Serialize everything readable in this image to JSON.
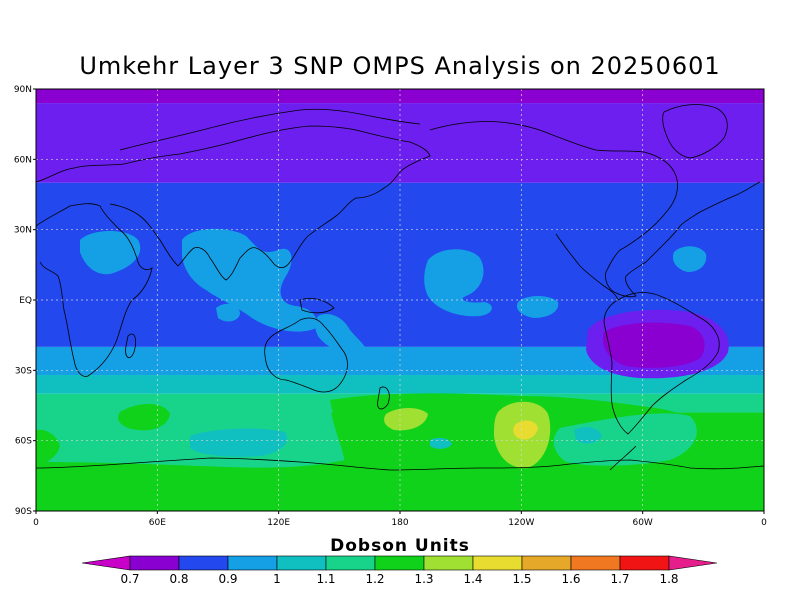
{
  "title": "Umkehr Layer 3 SNP OMPS Analysis on 20250601",
  "map": {
    "lat_labels": [
      "90N",
      "60N",
      "30N",
      "EQ",
      "30S",
      "60S",
      "90S"
    ],
    "lon_labels": [
      "0",
      "60E",
      "120E",
      "180",
      "120W",
      "60W",
      "0"
    ],
    "background_level_by_band": [
      {
        "lat_from": 90,
        "lat_to": 84,
        "color": "#8a00d0"
      },
      {
        "lat_from": 84,
        "lat_to": 50,
        "color": "#6c1fee"
      },
      {
        "lat_from": 50,
        "lat_to": -20,
        "color": "#2248ee"
      },
      {
        "lat_from": -20,
        "lat_to": -32,
        "color": "#15a0e6"
      },
      {
        "lat_from": -32,
        "lat_to": -40,
        "color": "#10c0c0"
      },
      {
        "lat_from": -40,
        "lat_to": -48,
        "color": "#18d48a"
      },
      {
        "lat_from": -48,
        "lat_to": -90,
        "color": "#10d21a"
      }
    ]
  },
  "colorbar": {
    "title": "Dobson Units",
    "levels": [
      "0.7",
      "0.8",
      "0.9",
      "1",
      "1.1",
      "1.2",
      "1.3",
      "1.4",
      "1.5",
      "1.6",
      "1.7",
      "1.8"
    ],
    "colors": [
      "#c800c8",
      "#8a00d0",
      "#2248ee",
      "#15a0e6",
      "#10c0c0",
      "#18d48a",
      "#10d21a",
      "#a0e032",
      "#e8dc30",
      "#e6a828",
      "#f07820",
      "#f01414",
      "#e61e8c"
    ]
  }
}
